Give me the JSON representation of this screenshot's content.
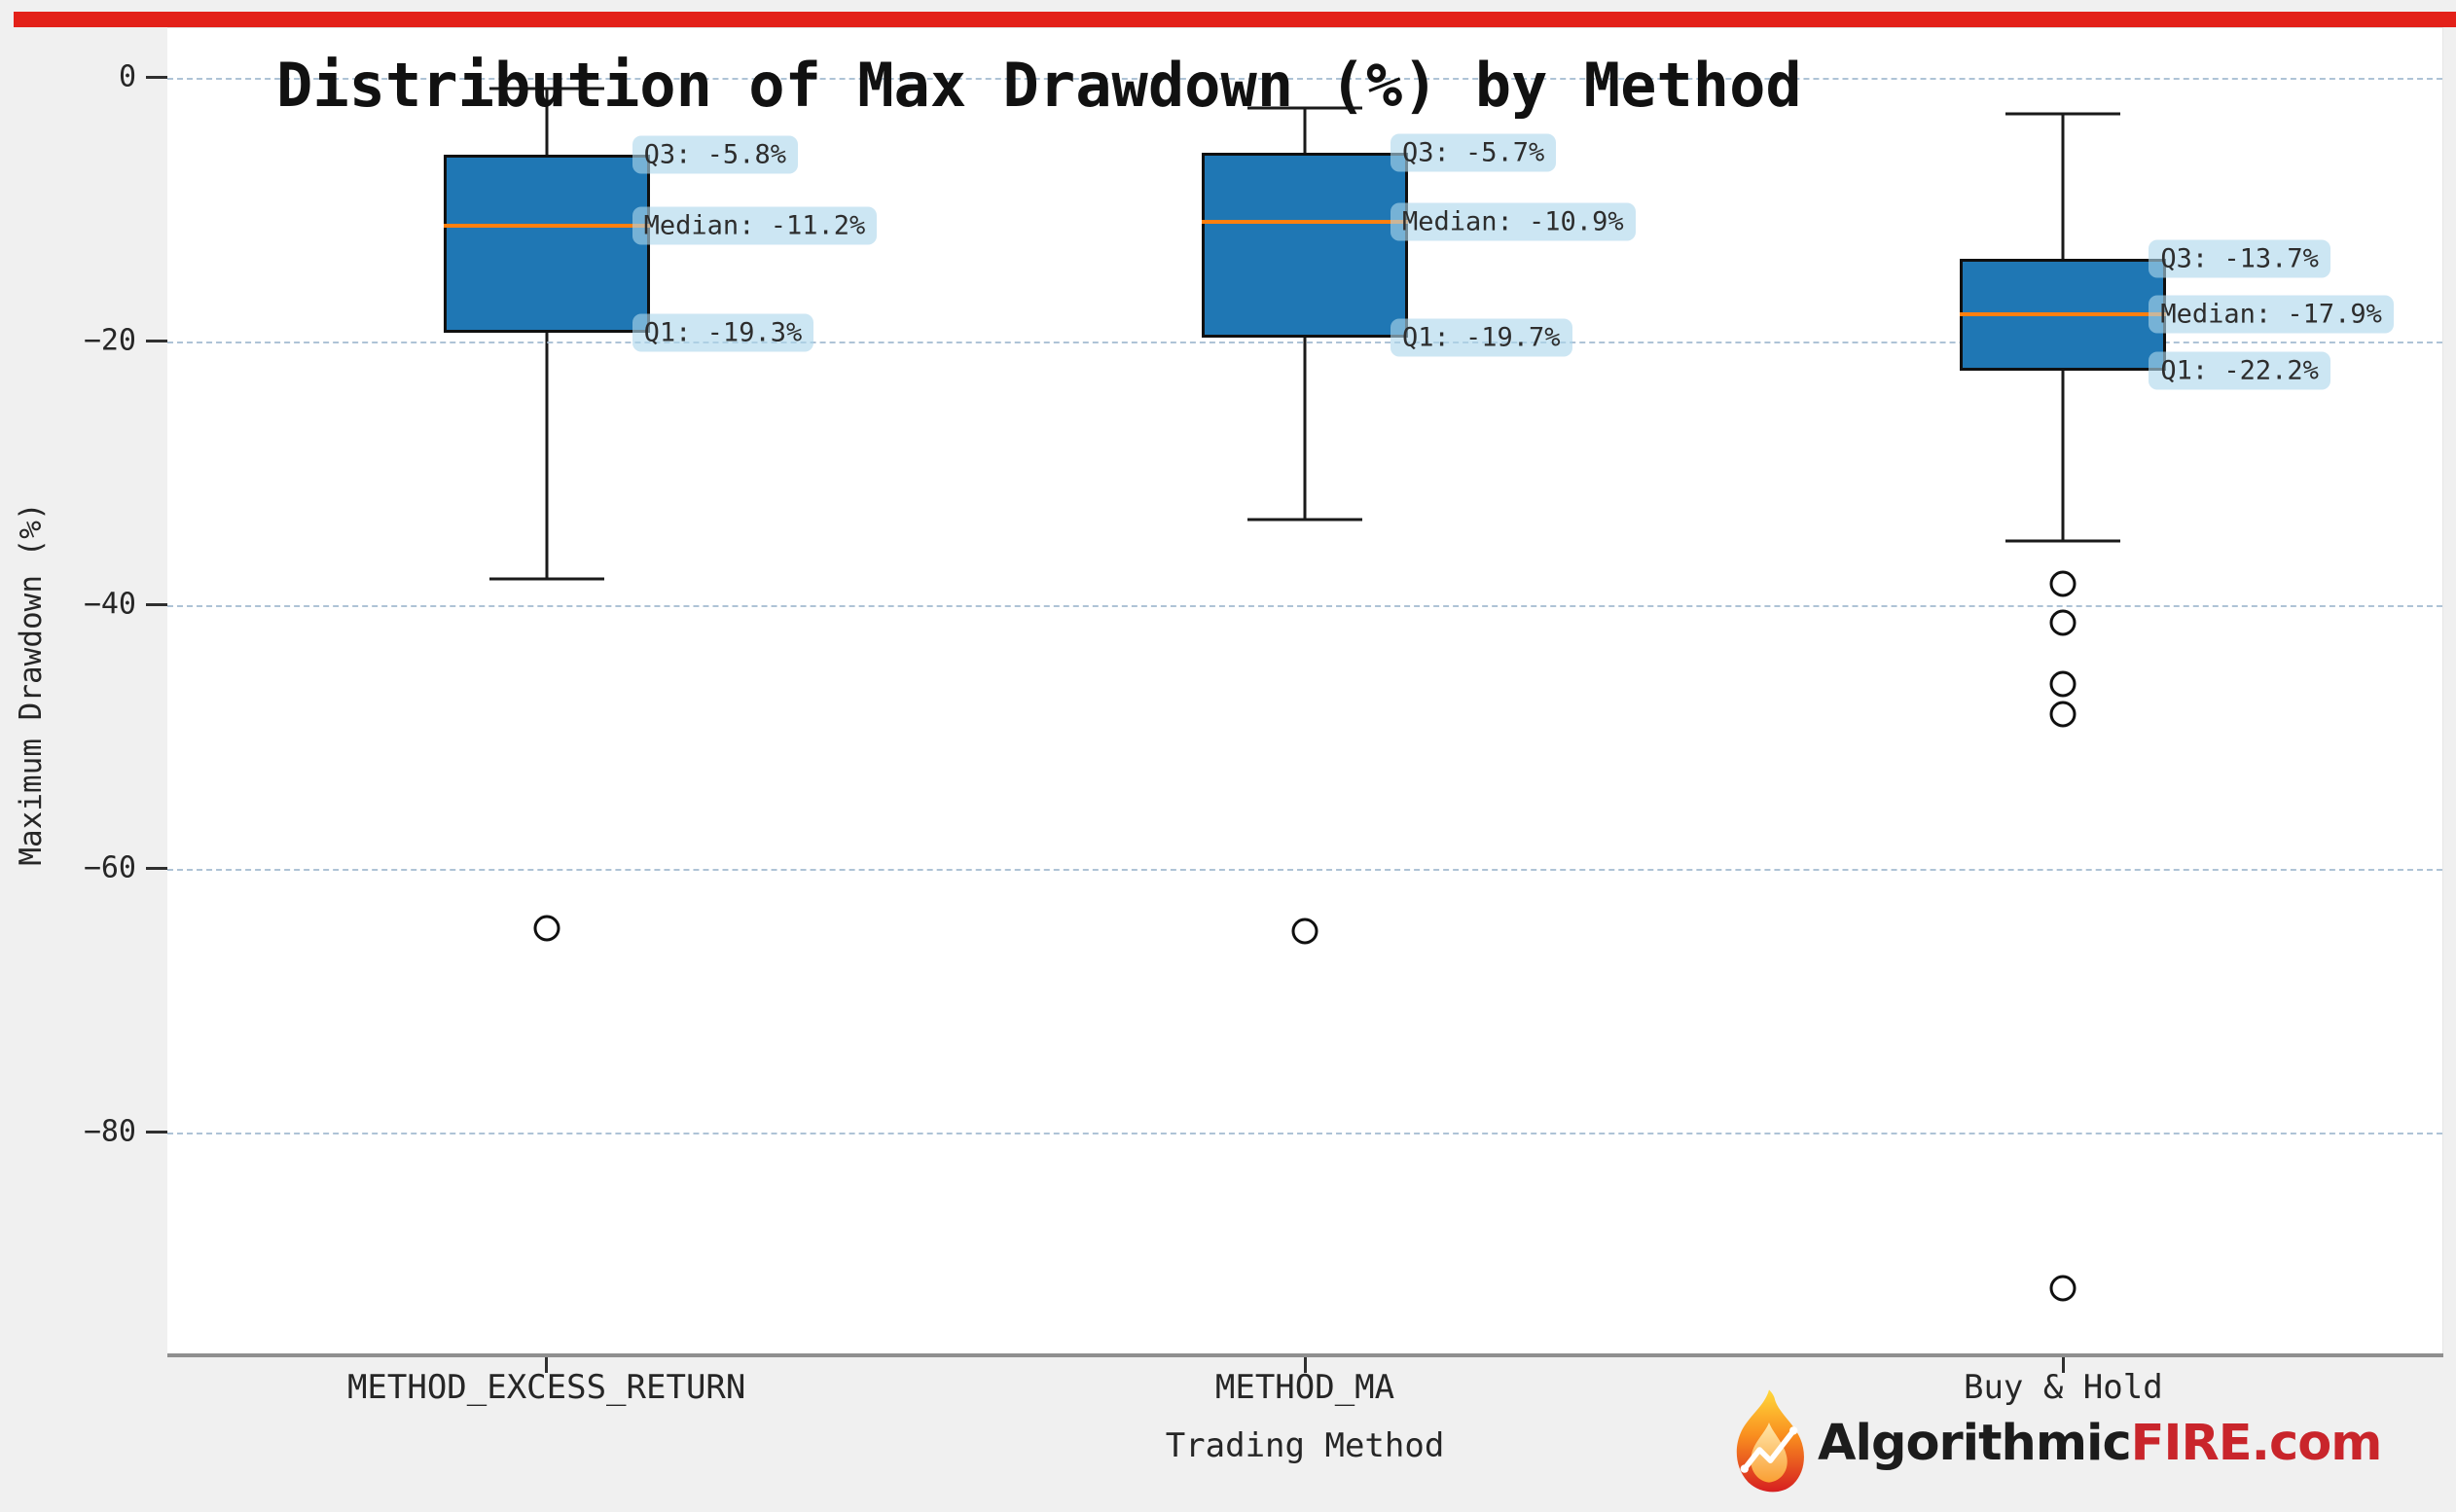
{
  "figure": {
    "top_bar_color": "#e32119",
    "background_color": "#f0f0f0",
    "plot_background": "#ffffff",
    "gridline_color": "#aec3d6"
  },
  "chart_data": {
    "type": "boxplot",
    "title": "Distribution of Max Drawdown (%) by Method",
    "xlabel": "Trading Method",
    "ylabel": "Maximum Drawdown (%)",
    "ylim": [
      -97,
      3.6
    ],
    "yticks": [
      0,
      -20,
      -40,
      -60,
      -80
    ],
    "ytick_labels": [
      "0",
      "−20",
      "−40",
      "−60",
      "−80"
    ],
    "grid": "horizontal dashed",
    "legend": "none",
    "box_color": "#1f77b4",
    "median_color": "#ff7f0e",
    "categories": [
      "METHOD_EXCESS_RETURN",
      "METHOD_MA",
      "Buy & Hold"
    ],
    "series": [
      {
        "method": "METHOD_EXCESS_RETURN",
        "whisker_high": -0.8,
        "q3": -5.8,
        "median": -11.2,
        "q1": -19.3,
        "whisker_low": -38.0,
        "outliers": [
          -64.5
        ],
        "labels": {
          "q3": "Q3: -5.8%",
          "median": "Median: -11.2%",
          "q1": "Q1: -19.3%"
        }
      },
      {
        "method": "METHOD_MA",
        "whisker_high": -2.3,
        "q3": -5.7,
        "median": -10.9,
        "q1": -19.7,
        "whisker_low": -33.5,
        "outliers": [
          -64.7
        ],
        "labels": {
          "q3": "Q3: -5.7%",
          "median": "Median: -10.9%",
          "q1": "Q1: -19.7%"
        }
      },
      {
        "method": "Buy & Hold",
        "whisker_high": -2.7,
        "q3": -13.7,
        "median": -17.9,
        "q1": -22.2,
        "whisker_low": -35.1,
        "outliers": [
          -38.4,
          -41.3,
          -46.0,
          -48.3,
          -91.8
        ],
        "labels": {
          "q3": "Q3: -13.7%",
          "median": "Median: -17.9%",
          "q1": "Q1: -22.2%"
        }
      }
    ]
  },
  "watermark": {
    "brand_dark": "Algorithmic",
    "brand_red": "FIRE.com",
    "brand_red_color": "#c9252b",
    "icon": "flame-icon"
  }
}
